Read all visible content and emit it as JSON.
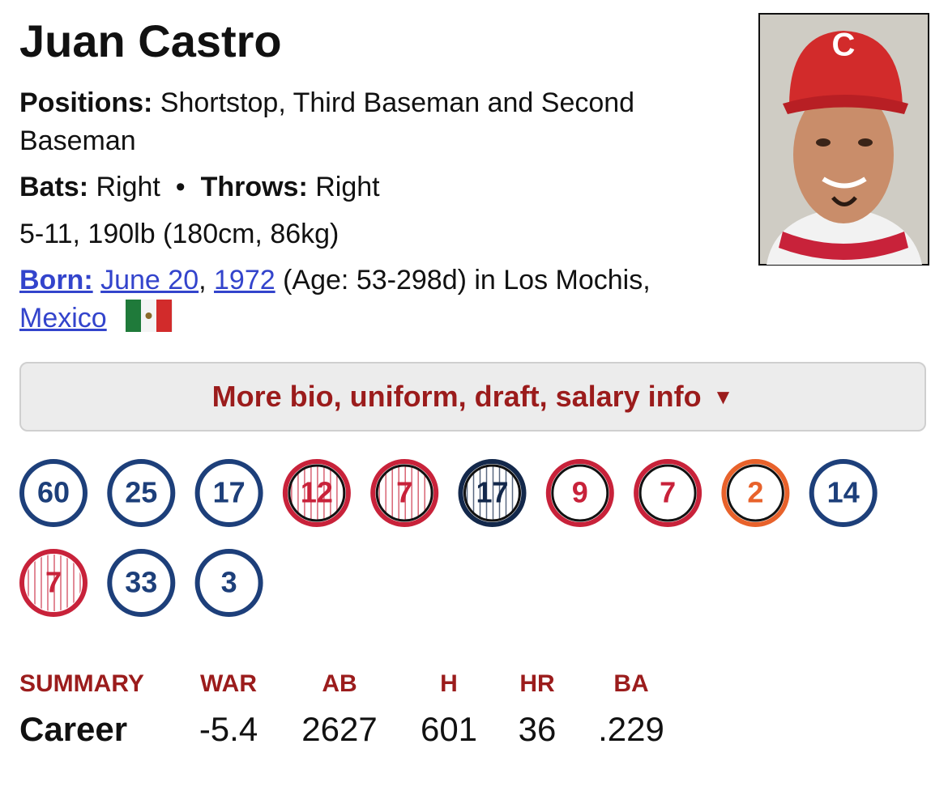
{
  "player": {
    "name": "Juan Castro",
    "positions_label": "Positions:",
    "positions": "Shortstop, Third Baseman and Second Baseman",
    "bats_label": "Bats:",
    "bats": "Right",
    "separator": "•",
    "throws_label": "Throws:",
    "throws": "Right",
    "size": "5-11, 190lb (180cm, 86kg)",
    "born_label": "Born:",
    "born_date": "June 20",
    "born_comma": ",",
    "born_year": "1972",
    "born_rest": "(Age: 53-298d) in Los Mochis,",
    "born_country": "Mexico"
  },
  "more_button": {
    "label": "More bio, uniform, draft, salary info",
    "arrow": "▼"
  },
  "uniforms": [
    {
      "number": "60",
      "color": "#1d3f7a",
      "inner_ring": false,
      "pinstripes": false
    },
    {
      "number": "25",
      "color": "#1d3f7a",
      "inner_ring": false,
      "pinstripes": false
    },
    {
      "number": "17",
      "color": "#1d3f7a",
      "inner_ring": false,
      "pinstripes": false
    },
    {
      "number": "12",
      "color": "#c8223a",
      "inner_ring": true,
      "pinstripes": true
    },
    {
      "number": "7",
      "color": "#c8223a",
      "inner_ring": true,
      "pinstripes": true
    },
    {
      "number": "17",
      "color": "#13284b",
      "inner_ring": true,
      "pinstripes": true
    },
    {
      "number": "9",
      "color": "#c8223a",
      "inner_ring": true,
      "pinstripes": false
    },
    {
      "number": "7",
      "color": "#c8223a",
      "inner_ring": true,
      "pinstripes": false
    },
    {
      "number": "2",
      "color": "#e8622b",
      "inner_ring": true,
      "pinstripes": false
    },
    {
      "number": "14",
      "color": "#1d3f7a",
      "inner_ring": false,
      "pinstripes": false
    },
    {
      "number": "7",
      "color": "#c8223a",
      "inner_ring": false,
      "pinstripes": true
    },
    {
      "number": "33",
      "color": "#1d3f7a",
      "inner_ring": false,
      "pinstripes": false
    },
    {
      "number": "3",
      "color": "#1d3f7a",
      "inner_ring": false,
      "pinstripes": false
    }
  ],
  "summary": {
    "headers": [
      "SUMMARY",
      "WAR",
      "AB",
      "H",
      "HR",
      "BA"
    ],
    "row": [
      "Career",
      "-5.4",
      "2627",
      "601",
      "36",
      ".229"
    ]
  }
}
